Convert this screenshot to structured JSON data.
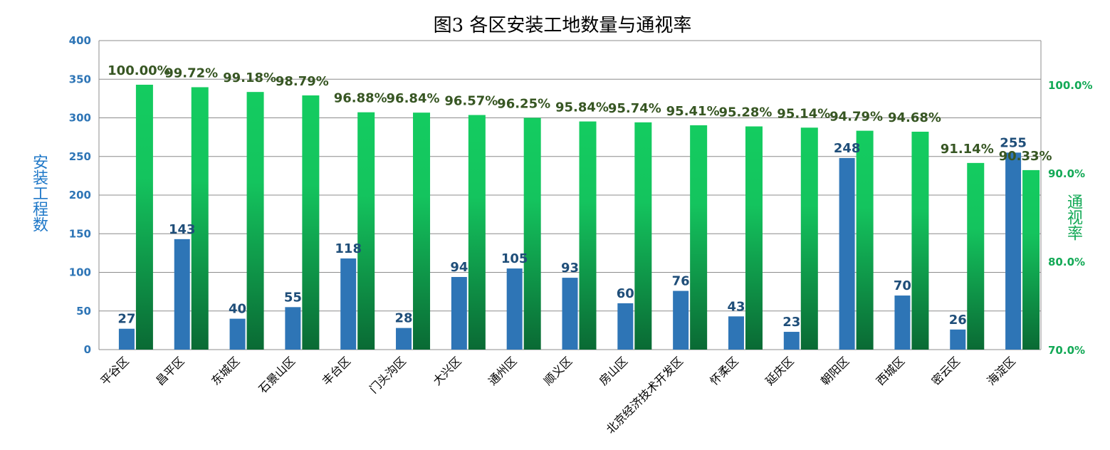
{
  "chart_data": {
    "type": "bar",
    "title": "图3   各区安装工地数量与通视率",
    "ylabel_left": "安装工程数",
    "ylabel_right": "通视率",
    "ylim_left": [
      0,
      400
    ],
    "yticks_left": [
      0,
      50,
      100,
      150,
      200,
      250,
      300,
      350,
      400
    ],
    "ylim_right": [
      70,
      105
    ],
    "yticks_right": [
      "70.0%",
      "80.0%",
      "90.0%",
      "100.0%"
    ],
    "grid": true,
    "categories": [
      "平谷区",
      "昌平区",
      "东城区",
      "石景山区",
      "丰台区",
      "门头沟区",
      "大兴区",
      "通州区",
      "顺义区",
      "房山区",
      "北京经济技术开发区",
      "怀柔区",
      "延庆区",
      "朝阳区",
      "西城区",
      "密云区",
      "海淀区"
    ],
    "series": [
      {
        "axis": "left",
        "color": "#2e75b6",
        "values": [
          27,
          143,
          40,
          55,
          118,
          28,
          94,
          105,
          93,
          60,
          76,
          43,
          23,
          248,
          70,
          26,
          255
        ]
      },
      {
        "axis": "right",
        "color": "#14cc60",
        "values": [
          100.0,
          99.72,
          99.18,
          98.79,
          96.88,
          96.84,
          96.57,
          96.25,
          95.84,
          95.74,
          95.41,
          95.28,
          95.14,
          94.79,
          94.68,
          91.14,
          90.33
        ]
      }
    ],
    "colors": {
      "left_axis": "#2e75b6",
      "right_axis": "#13a956",
      "count_label": "#1f4e79",
      "rate_label": "#375623"
    }
  }
}
